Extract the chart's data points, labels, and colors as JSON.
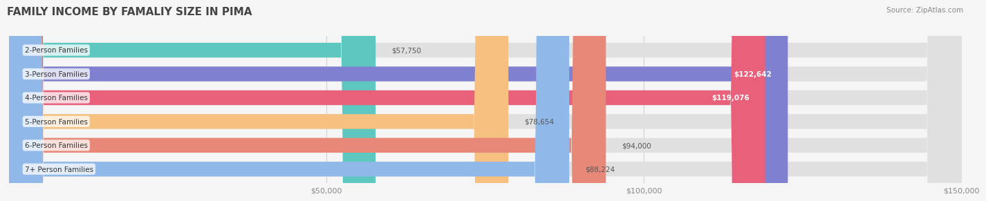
{
  "title": "FAMILY INCOME BY FAMALIY SIZE IN PIMA",
  "source": "Source: ZipAtlas.com",
  "categories": [
    "2-Person Families",
    "3-Person Families",
    "4-Person Families",
    "5-Person Families",
    "6-Person Families",
    "7+ Person Families"
  ],
  "values": [
    57750,
    122642,
    119076,
    78654,
    94000,
    88224
  ],
  "bar_colors": [
    "#5ec8c0",
    "#8080d0",
    "#e8607a",
    "#f5c080",
    "#e88878",
    "#90b8e8"
  ],
  "label_colors": [
    "#555555",
    "#ffffff",
    "#ffffff",
    "#555555",
    "#555555",
    "#555555"
  ],
  "xmax": 150000,
  "xticks": [
    50000,
    100000,
    150000
  ],
  "xticklabels": [
    "$50,000",
    "$100,000",
    "$150,000"
  ],
  "background_color": "#f5f5f5",
  "bar_background": "#e0e0e0",
  "title_fontsize": 11,
  "bar_height": 0.62,
  "figsize": [
    14.06,
    3.05
  ]
}
